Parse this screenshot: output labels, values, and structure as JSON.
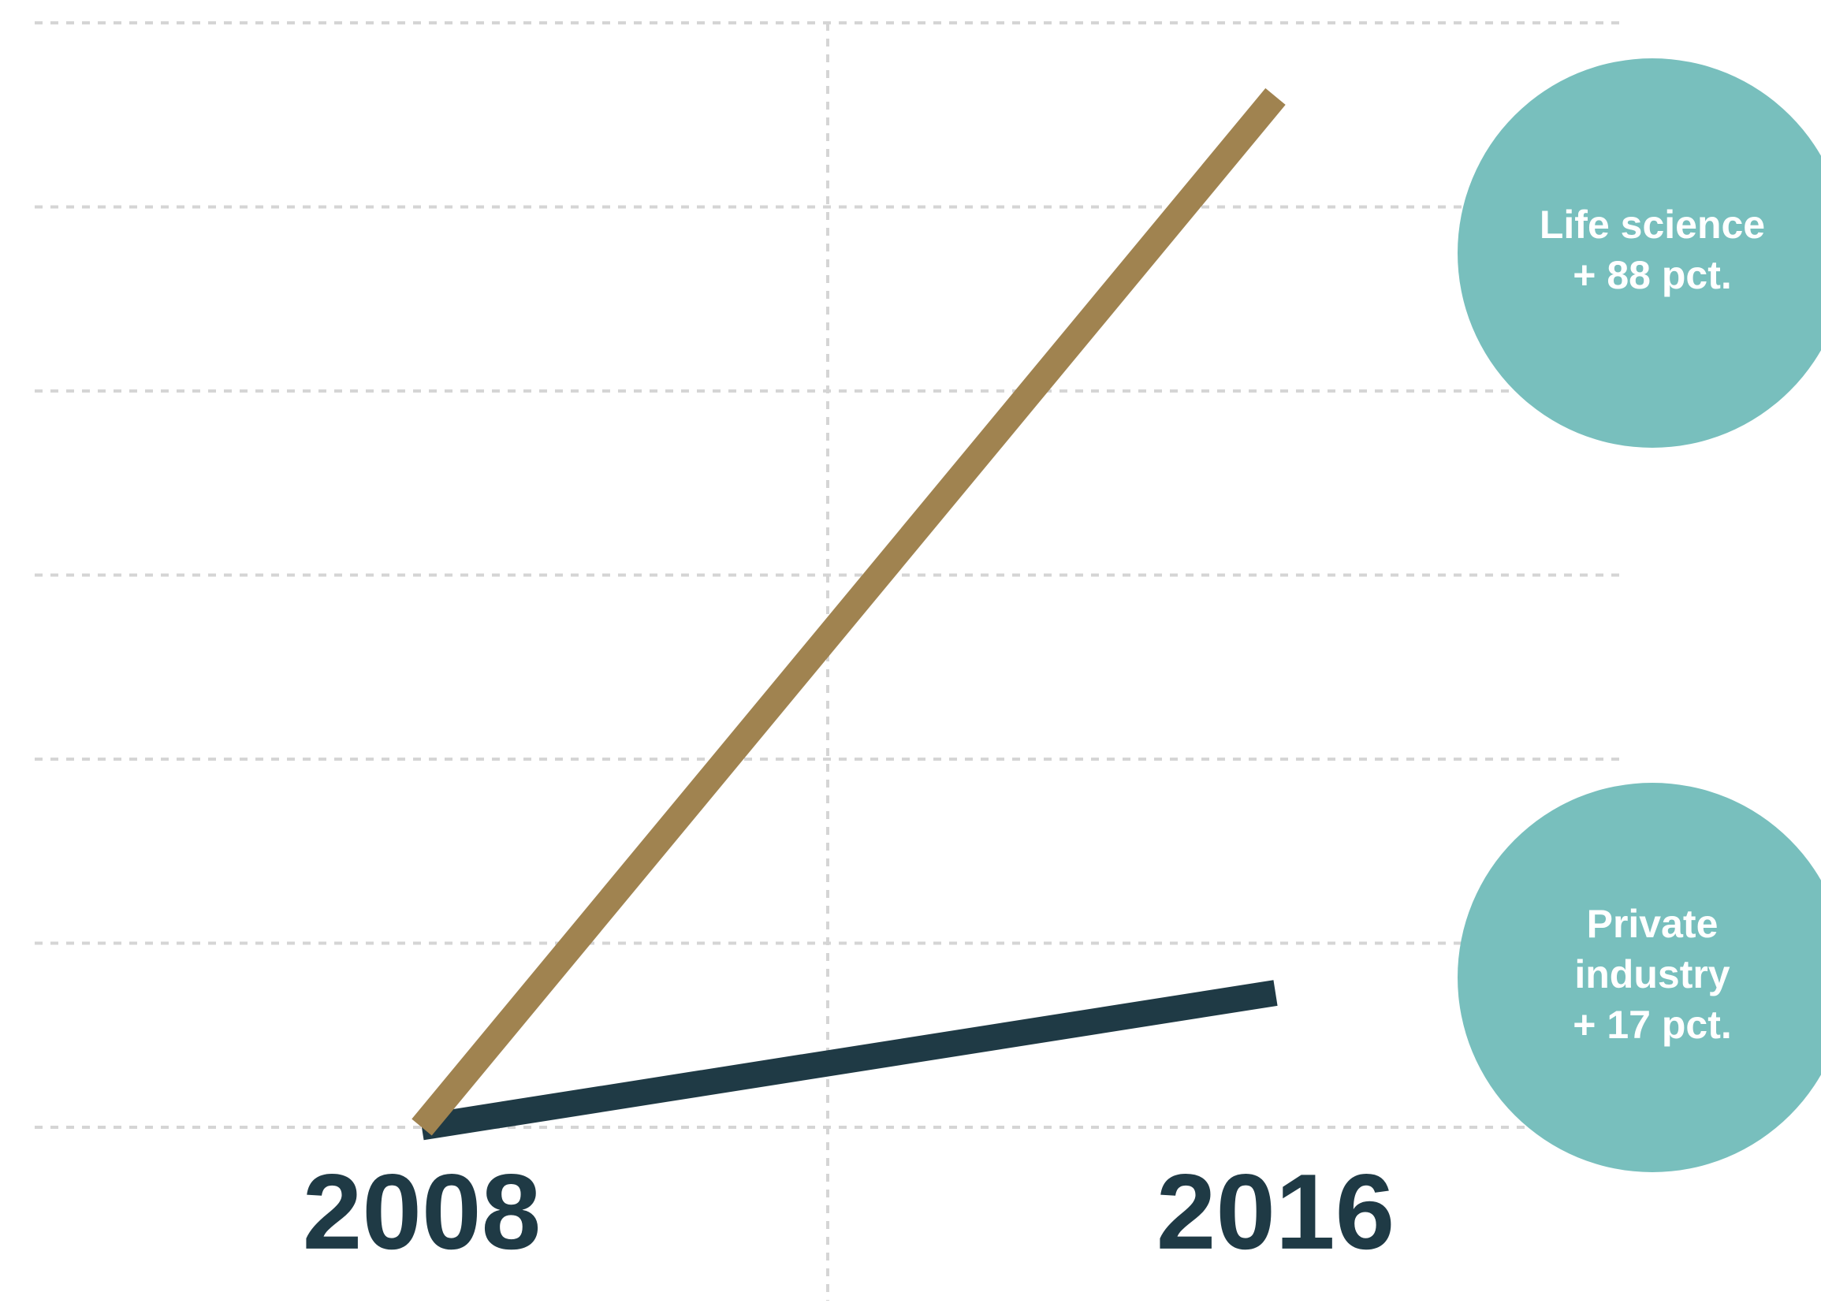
{
  "chart_data": {
    "type": "line",
    "categories": [
      "2008",
      "2016"
    ],
    "series": [
      {
        "name": "Life science",
        "color": "#a08350",
        "values": [
          0,
          5.6
        ]
      },
      {
        "name": "Private industry",
        "color": "#1f3a45",
        "values": [
          0,
          0.73
        ]
      }
    ],
    "ylim": [
      0,
      6
    ],
    "yticks": [
      0,
      1,
      2,
      3,
      4,
      5,
      6
    ],
    "grid": true,
    "annotations": [
      {
        "lines": [
          "Life science",
          "+ 88 pct."
        ],
        "color": "#78bfbd"
      },
      {
        "lines": [
          "Private",
          "industry",
          "+ 17 pct."
        ],
        "color": "#78bfbd"
      }
    ]
  }
}
